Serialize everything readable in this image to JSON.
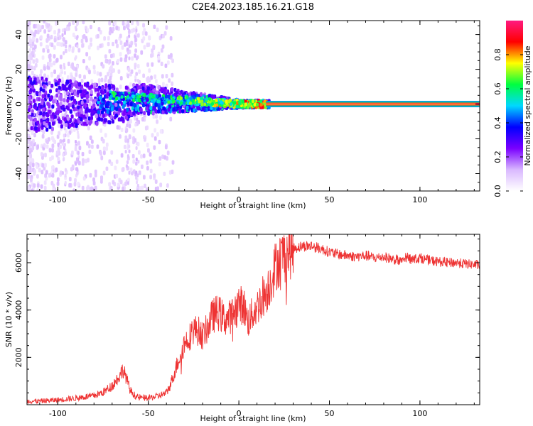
{
  "title": "C2E4.2023.185.16.21.G18",
  "chart_data": [
    {
      "type": "heatmap",
      "xlabel": "Height of straight line (km)",
      "ylabel": "Frequency (Hz)",
      "xlim": [
        -117,
        133
      ],
      "ylim": [
        -50,
        48
      ],
      "xticks": [
        -100,
        -50,
        0,
        50,
        100
      ],
      "yticks": [
        -40,
        -20,
        0,
        20,
        40
      ],
      "colorbar": {
        "label": "Normalized spectral amplitude",
        "range": [
          0,
          1
        ],
        "ticks": [
          "0.0",
          "0.2",
          "0.4",
          "0.6",
          "0.8"
        ],
        "colors": [
          "#ffffff",
          "#d9b8ff",
          "#7a00ff",
          "#0000ff",
          "#00d8ff",
          "#00ff40",
          "#ffff00",
          "#ff0000",
          "#ff1a80"
        ]
      },
      "features": {
        "main_line_center_hz": 0,
        "main_line_from_km": 15,
        "main_line_to_km": 133
      }
    },
    {
      "type": "line",
      "xlabel": "Height of straight line (km)",
      "ylabel": "SNR (10 * v/v)",
      "xlim": [
        -117,
        133
      ],
      "ylim": [
        0,
        7200
      ],
      "xticks": [
        -100,
        -50,
        0,
        50,
        100
      ],
      "yticks": [
        2000,
        4000,
        6000
      ],
      "series": [
        {
          "color": "#ee3333",
          "x": [
            -117,
            -110,
            -100,
            -90,
            -80,
            -75,
            -70,
            -66,
            -64,
            -62,
            -60,
            -57,
            -55,
            -50,
            -45,
            -40,
            -38,
            -35,
            -32,
            -30,
            -27,
            -25,
            -22,
            -20,
            -17,
            -15,
            -12,
            -10,
            -8,
            -5,
            -3,
            0,
            3,
            5,
            8,
            10,
            13,
            15,
            17,
            20,
            22,
            25,
            28,
            30,
            35,
            40,
            45,
            50,
            55,
            60,
            65,
            70,
            75,
            80,
            85,
            88,
            90,
            92,
            95,
            100,
            105,
            110,
            115,
            120,
            125,
            133
          ],
          "y": [
            150,
            150,
            200,
            280,
            380,
            520,
            800,
            1200,
            1500,
            1100,
            600,
            350,
            300,
            280,
            350,
            500,
            800,
            1500,
            2200,
            2600,
            2900,
            3200,
            3100,
            2900,
            3300,
            3700,
            3900,
            3800,
            3600,
            3700,
            3900,
            4300,
            4100,
            3500,
            3900,
            4100,
            4600,
            4700,
            5100,
            5800,
            6100,
            6300,
            6500,
            6600,
            6700,
            6700,
            6600,
            6450,
            6350,
            6300,
            6250,
            6300,
            6200,
            6250,
            6150,
            6100,
            6000,
            6250,
            6150,
            6200,
            6100,
            6050,
            6000,
            6000,
            5950,
            5900
          ]
        }
      ]
    }
  ]
}
